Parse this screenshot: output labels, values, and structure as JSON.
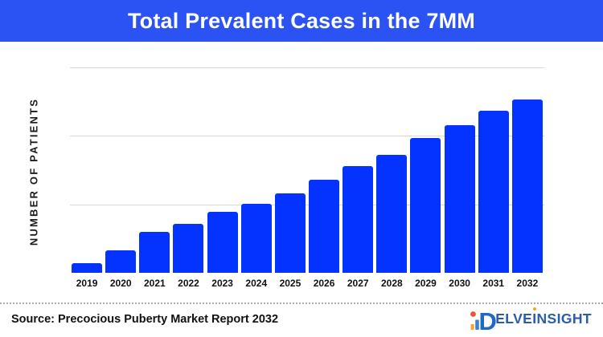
{
  "header": {
    "title": "Total Prevalent Cases in the 7MM",
    "bg_color": "#2B52F3",
    "text_color": "#FFFFFF"
  },
  "y_axis": {
    "label": "NUMBER OF PATIENTS"
  },
  "chart_data": {
    "type": "bar",
    "title": "Total Prevalent Cases in the 7MM",
    "xlabel": "",
    "ylabel": "NUMBER OF PATIENTS",
    "categories": [
      "2019",
      "2020",
      "2021",
      "2022",
      "2023",
      "2024",
      "2025",
      "2026",
      "2027",
      "2028",
      "2029",
      "2030",
      "2031",
      "2032"
    ],
    "values": [
      5.6,
      13.0,
      23.6,
      28.2,
      35.2,
      39.8,
      45.8,
      53.7,
      61.6,
      68.1,
      77.8,
      85.2,
      93.5,
      100.0
    ],
    "values_note": "No numeric y-axis shown in figure; values are a relative index estimated from bar heights with 2032 = 100",
    "ylim": [
      0,
      118.5
    ],
    "grid": "horizontal-only, 3 light gray lines",
    "legend": "none",
    "bar_color": "#0433FF",
    "gridline_color": "#D8D8D8"
  },
  "footer": {
    "source": "Source: Precocious Puberty Market Report 2032",
    "logo": {
      "brand": "DelveInsight",
      "mark_letter": "D",
      "text_before": "ELVE",
      "dotted_letter": "I",
      "text_after": "NSIGHT",
      "mark_color": "#1E68C8",
      "text_color": "#2A5CAD",
      "dot_color": "#E8563C",
      "accent_orange": "#F5A623",
      "accent_blue": "#3B82D6"
    }
  }
}
